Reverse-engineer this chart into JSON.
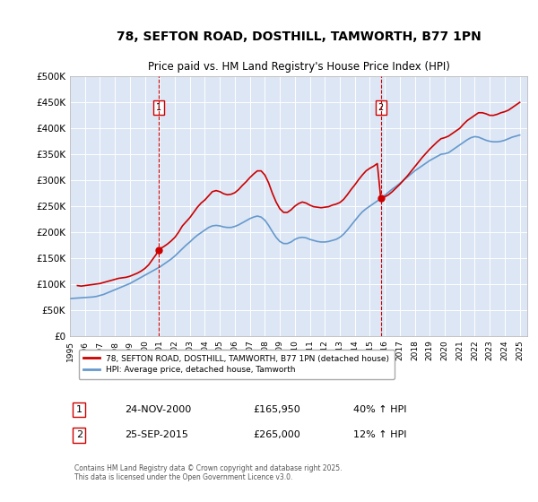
{
  "title": "78, SEFTON ROAD, DOSTHILL, TAMWORTH, B77 1PN",
  "subtitle": "Price paid vs. HM Land Registry's House Price Index (HPI)",
  "background_color": "#dce6f5",
  "plot_bg_color": "#dce6f5",
  "ylim": [
    0,
    500000
  ],
  "yticks": [
    0,
    50000,
    100000,
    150000,
    200000,
    250000,
    300000,
    350000,
    400000,
    450000,
    500000
  ],
  "ytick_labels": [
    "£0",
    "£50K",
    "£100K",
    "£150K",
    "£200K",
    "£250K",
    "£300K",
    "£350K",
    "£400K",
    "£450K",
    "£500K"
  ],
  "red_line_color": "#cc0000",
  "blue_line_color": "#6699cc",
  "vline_color": "#cc0000",
  "vline_style": "--",
  "marker1_date": 2000.9,
  "marker2_date": 2015.73,
  "marker1_value": 165950,
  "marker2_value": 265000,
  "legend_label1": "78, SEFTON ROAD, DOSTHILL, TAMWORTH, B77 1PN (detached house)",
  "legend_label2": "HPI: Average price, detached house, Tamworth",
  "table_row1": [
    "1",
    "24-NOV-2000",
    "£165,950",
    "40% ↑ HPI"
  ],
  "table_row2": [
    "2",
    "25-SEP-2015",
    "£265,000",
    "12% ↑ HPI"
  ],
  "footer": "Contains HM Land Registry data © Crown copyright and database right 2025.\nThis data is licensed under the Open Government Licence v3.0.",
  "red_data": {
    "x": [
      1995.5,
      1995.75,
      1996.0,
      1996.25,
      1996.5,
      1996.75,
      1997.0,
      1997.25,
      1997.5,
      1997.75,
      1998.0,
      1998.25,
      1998.5,
      1998.75,
      1999.0,
      1999.25,
      1999.5,
      1999.75,
      2000.0,
      2000.25,
      2000.5,
      2000.75,
      2000.9,
      2001.0,
      2001.25,
      2001.5,
      2001.75,
      2002.0,
      2002.25,
      2002.5,
      2002.75,
      2003.0,
      2003.25,
      2003.5,
      2003.75,
      2004.0,
      2004.25,
      2004.5,
      2004.75,
      2005.0,
      2005.25,
      2005.5,
      2005.75,
      2006.0,
      2006.25,
      2006.5,
      2006.75,
      2007.0,
      2007.25,
      2007.5,
      2007.75,
      2008.0,
      2008.25,
      2008.5,
      2008.75,
      2009.0,
      2009.25,
      2009.5,
      2009.75,
      2010.0,
      2010.25,
      2010.5,
      2010.75,
      2011.0,
      2011.25,
      2011.5,
      2011.75,
      2012.0,
      2012.25,
      2012.5,
      2012.75,
      2013.0,
      2013.25,
      2013.5,
      2013.75,
      2014.0,
      2014.25,
      2014.5,
      2014.75,
      2015.0,
      2015.25,
      2015.5,
      2015.73,
      2015.75,
      2016.0,
      2016.25,
      2016.5,
      2016.75,
      2017.0,
      2017.25,
      2017.5,
      2017.75,
      2018.0,
      2018.25,
      2018.5,
      2018.75,
      2019.0,
      2019.25,
      2019.5,
      2019.75,
      2020.0,
      2020.25,
      2020.5,
      2020.75,
      2021.0,
      2021.25,
      2021.5,
      2021.75,
      2022.0,
      2022.25,
      2022.5,
      2022.75,
      2023.0,
      2023.25,
      2023.5,
      2023.75,
      2024.0,
      2024.25,
      2024.5,
      2024.75,
      2025.0
    ],
    "y": [
      97000,
      96000,
      97000,
      98000,
      99000,
      100000,
      101000,
      103000,
      105000,
      107000,
      109000,
      111000,
      112000,
      113000,
      115000,
      118000,
      121000,
      125000,
      130000,
      137000,
      147000,
      157000,
      165950,
      168000,
      172000,
      177000,
      183000,
      190000,
      200000,
      212000,
      220000,
      228000,
      238000,
      248000,
      256000,
      262000,
      270000,
      278000,
      280000,
      278000,
      274000,
      272000,
      273000,
      276000,
      282000,
      290000,
      297000,
      305000,
      312000,
      318000,
      318000,
      310000,
      295000,
      275000,
      258000,
      245000,
      238000,
      238000,
      243000,
      250000,
      255000,
      258000,
      256000,
      252000,
      249000,
      248000,
      247000,
      248000,
      249000,
      252000,
      254000,
      257000,
      263000,
      272000,
      282000,
      291000,
      301000,
      310000,
      318000,
      323000,
      327000,
      332000,
      265000,
      265000,
      268000,
      272000,
      278000,
      285000,
      292000,
      300000,
      308000,
      317000,
      326000,
      335000,
      344000,
      352000,
      360000,
      367000,
      374000,
      380000,
      382000,
      385000,
      390000,
      395000,
      400000,
      408000,
      415000,
      420000,
      425000,
      430000,
      430000,
      428000,
      425000,
      425000,
      427000,
      430000,
      432000,
      435000,
      440000,
      445000,
      450000
    ]
  },
  "blue_data": {
    "x": [
      1995.0,
      1995.25,
      1995.5,
      1995.75,
      1996.0,
      1996.25,
      1996.5,
      1996.75,
      1997.0,
      1997.25,
      1997.5,
      1997.75,
      1998.0,
      1998.25,
      1998.5,
      1998.75,
      1999.0,
      1999.25,
      1999.5,
      1999.75,
      2000.0,
      2000.25,
      2000.5,
      2000.75,
      2001.0,
      2001.25,
      2001.5,
      2001.75,
      2002.0,
      2002.25,
      2002.5,
      2002.75,
      2003.0,
      2003.25,
      2003.5,
      2003.75,
      2004.0,
      2004.25,
      2004.5,
      2004.75,
      2005.0,
      2005.25,
      2005.5,
      2005.75,
      2006.0,
      2006.25,
      2006.5,
      2006.75,
      2007.0,
      2007.25,
      2007.5,
      2007.75,
      2008.0,
      2008.25,
      2008.5,
      2008.75,
      2009.0,
      2009.25,
      2009.5,
      2009.75,
      2010.0,
      2010.25,
      2010.5,
      2010.75,
      2011.0,
      2011.25,
      2011.5,
      2011.75,
      2012.0,
      2012.25,
      2012.5,
      2012.75,
      2013.0,
      2013.25,
      2013.5,
      2013.75,
      2014.0,
      2014.25,
      2014.5,
      2014.75,
      2015.0,
      2015.25,
      2015.5,
      2015.75,
      2016.0,
      2016.25,
      2016.5,
      2016.75,
      2017.0,
      2017.25,
      2017.5,
      2017.75,
      2018.0,
      2018.25,
      2018.5,
      2018.75,
      2019.0,
      2019.25,
      2019.5,
      2019.75,
      2020.0,
      2020.25,
      2020.5,
      2020.75,
      2021.0,
      2021.25,
      2021.5,
      2021.75,
      2022.0,
      2022.25,
      2022.5,
      2022.75,
      2023.0,
      2023.25,
      2023.5,
      2023.75,
      2024.0,
      2024.25,
      2024.5,
      2024.75,
      2025.0
    ],
    "y": [
      72000,
      72500,
      73000,
      73500,
      74000,
      74500,
      75000,
      76000,
      78000,
      80000,
      83000,
      86000,
      89000,
      92000,
      95000,
      98000,
      101000,
      105000,
      109000,
      113000,
      117000,
      121000,
      125000,
      129000,
      133000,
      138000,
      143000,
      148000,
      154000,
      161000,
      168000,
      175000,
      181000,
      188000,
      194000,
      199000,
      204000,
      209000,
      212000,
      213000,
      212000,
      210000,
      209000,
      209000,
      211000,
      214000,
      218000,
      222000,
      226000,
      229000,
      231000,
      229000,
      223000,
      213000,
      201000,
      190000,
      182000,
      178000,
      178000,
      181000,
      186000,
      189000,
      190000,
      189000,
      186000,
      184000,
      182000,
      181000,
      181000,
      182000,
      184000,
      186000,
      190000,
      196000,
      204000,
      213000,
      222000,
      231000,
      239000,
      245000,
      250000,
      255000,
      260000,
      265000,
      271000,
      277000,
      283000,
      288000,
      294000,
      300000,
      306000,
      312000,
      318000,
      323000,
      328000,
      333000,
      338000,
      342000,
      346000,
      350000,
      351000,
      353000,
      358000,
      363000,
      368000,
      373000,
      378000,
      382000,
      384000,
      383000,
      380000,
      377000,
      375000,
      374000,
      374000,
      375000,
      377000,
      380000,
      383000,
      385000,
      387000
    ]
  }
}
